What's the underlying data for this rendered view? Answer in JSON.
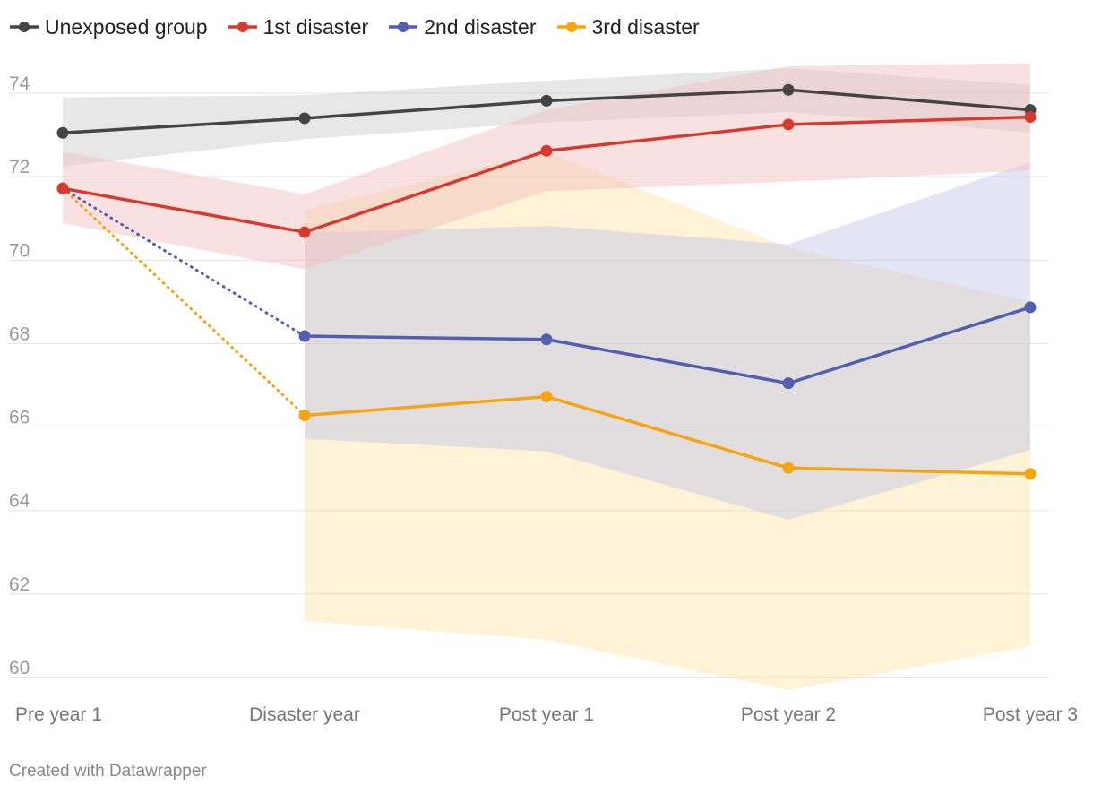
{
  "legend": [
    {
      "name": "Unexposed group",
      "color": "#444444"
    },
    {
      "name": "1st disaster",
      "color": "#d63a2f"
    },
    {
      "name": "2nd disaster",
      "color": "#525eb0"
    },
    {
      "name": "3rd disaster",
      "color": "#f5a511"
    }
  ],
  "footer": "Created with Datawrapper",
  "chart_data": {
    "type": "line",
    "title": "",
    "xlabel": "",
    "ylabel": "",
    "categories": [
      "Pre year 1",
      "Disaster year",
      "Post year 1",
      "Post year 2",
      "Post year 3"
    ],
    "ylim": [
      60,
      74
    ],
    "yticks": [
      60,
      62,
      64,
      66,
      68,
      70,
      72,
      74
    ],
    "grid": true,
    "legend_position": "top-left",
    "series": [
      {
        "name": "Unexposed group",
        "color": "#444444",
        "band_color": "#cfcfcf",
        "band_opacity": 0.5,
        "values": [
          73.05,
          73.4,
          73.82,
          74.08,
          73.6
        ],
        "lower": [
          72.25,
          72.9,
          73.3,
          73.55,
          73.05
        ],
        "upper": [
          73.9,
          73.95,
          74.3,
          74.6,
          74.2
        ],
        "dotted_segments": []
      },
      {
        "name": "3rd disaster",
        "color": "#f5a511",
        "band_color": "#fde0a0",
        "band_opacity": 0.42,
        "values": [
          71.72,
          66.28,
          66.73,
          65.02,
          64.88
        ],
        "lower": [
          null,
          61.35,
          60.9,
          59.7,
          60.75
        ],
        "upper": [
          null,
          71.2,
          72.6,
          70.3,
          69.0
        ],
        "dotted_segments": [
          0
        ]
      },
      {
        "name": "2nd disaster",
        "color": "#525eb0",
        "band_color": "#c2c6e8",
        "band_opacity": 0.45,
        "values": [
          71.72,
          68.18,
          68.1,
          67.05,
          68.87
        ],
        "lower": [
          null,
          65.72,
          65.42,
          63.78,
          65.45
        ],
        "upper": [
          null,
          70.65,
          70.82,
          70.38,
          72.35
        ],
        "dotted_segments": [
          0
        ]
      },
      {
        "name": "1st disaster",
        "color": "#d63a2f",
        "band_color": "#f2bcbc",
        "band_opacity": 0.45,
        "values": [
          71.72,
          70.67,
          72.62,
          73.25,
          73.43
        ],
        "lower": [
          70.88,
          69.78,
          71.65,
          71.88,
          72.15
        ],
        "upper": [
          72.6,
          71.58,
          73.6,
          74.65,
          74.72
        ],
        "dotted_segments": []
      }
    ]
  }
}
